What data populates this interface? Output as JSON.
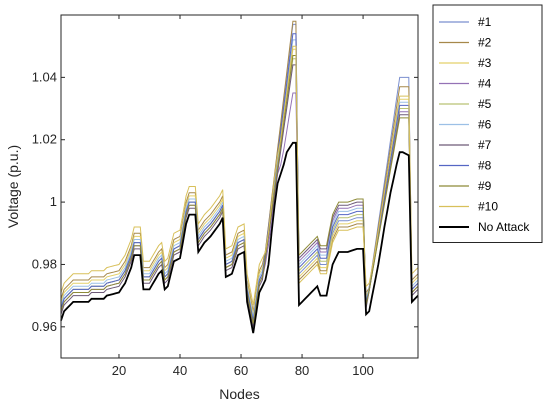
{
  "chart_data": {
    "type": "line",
    "xlabel": "Nodes",
    "ylabel": "Voltage (p.u.)",
    "xlim": [
      1,
      118
    ],
    "ylim": [
      0.95,
      1.06
    ],
    "xticks": [
      20,
      40,
      60,
      80,
      100
    ],
    "yticks": [
      0.96,
      0.98,
      1,
      1.02,
      1.04
    ],
    "ytick_labels": [
      "0.96",
      "0.98",
      "1",
      "1.02",
      "1.04"
    ],
    "grid": false,
    "legend_position": "outside-right",
    "base_curve": {
      "name": "No Attack",
      "color": "#000000",
      "points": [
        [
          1,
          0.962
        ],
        [
          2,
          0.965
        ],
        [
          3,
          0.966
        ],
        [
          4,
          0.967
        ],
        [
          5,
          0.968
        ],
        [
          10,
          0.968
        ],
        [
          11,
          0.969
        ],
        [
          15,
          0.969
        ],
        [
          16,
          0.97
        ],
        [
          20,
          0.971
        ],
        [
          22,
          0.974
        ],
        [
          24,
          0.979
        ],
        [
          25,
          0.983
        ],
        [
          27,
          0.983
        ],
        [
          28,
          0.972
        ],
        [
          30,
          0.972
        ],
        [
          33,
          0.977
        ],
        [
          34,
          0.978
        ],
        [
          35,
          0.972
        ],
        [
          36,
          0.973
        ],
        [
          38,
          0.981
        ],
        [
          40,
          0.982
        ],
        [
          42,
          0.993
        ],
        [
          43,
          0.996
        ],
        [
          45,
          0.996
        ],
        [
          46,
          0.984
        ],
        [
          48,
          0.987
        ],
        [
          50,
          0.989
        ],
        [
          53,
          0.993
        ],
        [
          54,
          0.995
        ],
        [
          55,
          0.976
        ],
        [
          57,
          0.977
        ],
        [
          59,
          0.983
        ],
        [
          61,
          0.984
        ],
        [
          62,
          0.968
        ],
        [
          64,
          0.958
        ],
        [
          66,
          0.971
        ],
        [
          68,
          0.975
        ],
        [
          69,
          0.98
        ],
        [
          70,
          0.99
        ],
        [
          71,
          0.999
        ],
        [
          72,
          1.006
        ],
        [
          73,
          1.009
        ],
        [
          74,
          1.012
        ],
        [
          75,
          1.016
        ],
        [
          77,
          1.019
        ],
        [
          78,
          1.019
        ],
        [
          79,
          0.967
        ],
        [
          81,
          0.969
        ],
        [
          83,
          0.971
        ],
        [
          85,
          0.973
        ],
        [
          86,
          0.97
        ],
        [
          88,
          0.97
        ],
        [
          90,
          0.98
        ],
        [
          92,
          0.984
        ],
        [
          95,
          0.984
        ],
        [
          98,
          0.985
        ],
        [
          100,
          0.985
        ],
        [
          101,
          0.964
        ],
        [
          102,
          0.965
        ],
        [
          105,
          0.98
        ],
        [
          107,
          0.992
        ],
        [
          109,
          1.003
        ],
        [
          111,
          1.012
        ],
        [
          112,
          1.016
        ],
        [
          113,
          1.016
        ],
        [
          115,
          1.015
        ],
        [
          116,
          0.968
        ],
        [
          117,
          0.969
        ],
        [
          118,
          0.97
        ]
      ]
    },
    "series": [
      {
        "name": "#1",
        "color": "#7b8fcf",
        "offset": 0.004,
        "flat_offset": 0.006,
        "peak1": 1.057,
        "peak2": 1.04
      },
      {
        "name": "#2",
        "color": "#a6884a",
        "offset": 0.007,
        "flat_offset": 0.004,
        "peak1": 1.058,
        "peak2": 1.037
      },
      {
        "name": "#3",
        "color": "#e3d06b",
        "offset": 0.006,
        "flat_offset": 0.005,
        "peak1": 1.049,
        "peak2": 1.033
      },
      {
        "name": "#4",
        "color": "#9472b5",
        "offset": 0.003,
        "flat_offset": 0.01,
        "peak1": 1.035,
        "peak2": 1.029
      },
      {
        "name": "#5",
        "color": "#b9c275",
        "offset": 0.004,
        "flat_offset": 0.007,
        "peak1": 1.046,
        "peak2": 1.03
      },
      {
        "name": "#6",
        "color": "#9cc0e6",
        "offset": 0.005,
        "flat_offset": 0.009,
        "peak1": 1.052,
        "peak2": 1.032
      },
      {
        "name": "#7",
        "color": "#6e5a78",
        "offset": 0.002,
        "flat_offset": 0.011,
        "peak1": 1.044,
        "peak2": 1.028
      },
      {
        "name": "#8",
        "color": "#5566c4",
        "offset": 0.004,
        "flat_offset": 0.008,
        "peak1": 1.054,
        "peak2": 1.031
      },
      {
        "name": "#9",
        "color": "#8e8b38",
        "offset": 0.003,
        "flat_offset": 0.012,
        "peak1": 1.047,
        "peak2": 1.027
      },
      {
        "name": "#10",
        "color": "#d8c05a",
        "offset": 0.009,
        "flat_offset": 0.003,
        "peak1": 1.05,
        "peak2": 1.034
      }
    ]
  }
}
